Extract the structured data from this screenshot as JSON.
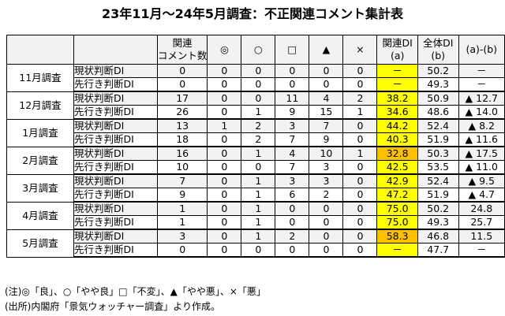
{
  "title": "23年11月～24年5月調査：不正関連コメント集計表",
  "headers": {
    "blank1": "",
    "blank2": "",
    "count_l1": "関連",
    "count_l2": "コメント数",
    "sym1": "◎",
    "sym2": "○",
    "sym3": "□",
    "sym4": "▲",
    "sym5": "×",
    "rel_l1": "関連DI",
    "rel_l2": "(a)",
    "all_l1": "全体DI",
    "all_l2": "(b)",
    "diff": "(a)-(b)"
  },
  "groups": [
    {
      "month": "11月調査",
      "rows": [
        {
          "label": "現状判断DI",
          "count": "0",
          "s1": "0",
          "s2": "0",
          "s3": "0",
          "s4": "0",
          "s5": "0",
          "rel": "－",
          "rel_color": "yellow",
          "all": "50.2",
          "diff": "－"
        },
        {
          "label": "先行き判断DI",
          "count": "0",
          "s1": "0",
          "s2": "0",
          "s3": "0",
          "s4": "0",
          "s5": "0",
          "rel": "－",
          "rel_color": "yellow",
          "all": "49.3",
          "diff": "－"
        }
      ]
    },
    {
      "month": "12月調査",
      "rows": [
        {
          "label": "現状判断DI",
          "count": "17",
          "s1": "0",
          "s2": "0",
          "s3": "11",
          "s4": "4",
          "s5": "2",
          "rel": "38.2",
          "rel_color": "yellow",
          "all": "50.9",
          "diff": "▲ 12.7"
        },
        {
          "label": "先行き判断DI",
          "count": "26",
          "s1": "0",
          "s2": "1",
          "s3": "9",
          "s4": "15",
          "s5": "1",
          "rel": "34.6",
          "rel_color": "yellow",
          "all": "48.6",
          "diff": "▲ 14.0"
        }
      ]
    },
    {
      "month": "1月調査",
      "rows": [
        {
          "label": "現状判断DI",
          "count": "13",
          "s1": "1",
          "s2": "2",
          "s3": "3",
          "s4": "7",
          "s5": "0",
          "rel": "44.2",
          "rel_color": "yellow",
          "all": "52.4",
          "diff": "▲ 8.2"
        },
        {
          "label": "先行き判断DI",
          "count": "18",
          "s1": "0",
          "s2": "2",
          "s3": "7",
          "s4": "9",
          "s5": "0",
          "rel": "40.3",
          "rel_color": "yellow",
          "all": "51.9",
          "diff": "▲ 11.6"
        }
      ]
    },
    {
      "month": "2月調査",
      "rows": [
        {
          "label": "現状判断DI",
          "count": "16",
          "s1": "0",
          "s2": "1",
          "s3": "4",
          "s4": "10",
          "s5": "1",
          "rel": "32.8",
          "rel_color": "orange",
          "all": "50.3",
          "diff": "▲ 17.5"
        },
        {
          "label": "先行き判断DI",
          "count": "10",
          "s1": "0",
          "s2": "0",
          "s3": "7",
          "s4": "3",
          "s5": "0",
          "rel": "42.5",
          "rel_color": "yellow",
          "all": "53.5",
          "diff": "▲ 11.0"
        }
      ]
    },
    {
      "month": "3月調査",
      "rows": [
        {
          "label": "現状判断DI",
          "count": "7",
          "s1": "0",
          "s2": "1",
          "s3": "3",
          "s4": "3",
          "s5": "0",
          "rel": "42.9",
          "rel_color": "yellow",
          "all": "52.4",
          "diff": "▲ 9.5"
        },
        {
          "label": "先行き判断DI",
          "count": "9",
          "s1": "0",
          "s2": "1",
          "s3": "6",
          "s4": "2",
          "s5": "0",
          "rel": "47.2",
          "rel_color": "yellow",
          "all": "51.9",
          "diff": "▲ 4.7"
        }
      ]
    },
    {
      "month": "4月調査",
      "rows": [
        {
          "label": "現状判断DI",
          "count": "1",
          "s1": "0",
          "s2": "1",
          "s3": "0",
          "s4": "0",
          "s5": "0",
          "rel": "75.0",
          "rel_color": "yellow",
          "all": "50.2",
          "diff": "24.8"
        },
        {
          "label": "先行き判断DI",
          "count": "1",
          "s1": "0",
          "s2": "1",
          "s3": "0",
          "s4": "0",
          "s5": "0",
          "rel": "75.0",
          "rel_color": "yellow",
          "all": "49.3",
          "diff": "25.7"
        }
      ]
    },
    {
      "month": "5月調査",
      "rows": [
        {
          "label": "現状判断DI",
          "count": "3",
          "s1": "0",
          "s2": "1",
          "s3": "2",
          "s4": "0",
          "s5": "0",
          "rel": "58.3",
          "rel_color": "orange",
          "all": "46.8",
          "diff": "11.5"
        },
        {
          "label": "先行き判断DI",
          "count": "0",
          "s1": "0",
          "s2": "0",
          "s3": "0",
          "s4": "0",
          "s5": "0",
          "rel": "－",
          "rel_color": "yellow",
          "all": "47.7",
          "diff": "－"
        }
      ]
    }
  ],
  "notes": {
    "note1": "(注)◎「良」、○「やや良」□「不変」、▲「やや悪」、×「悪」",
    "note2": "(出所)内閣府「景気ウォッチャー調査」より作成。"
  },
  "colors": {
    "yellow": "#ffff00",
    "orange": "#ffc000",
    "header_bg": "#f2f2f2"
  }
}
